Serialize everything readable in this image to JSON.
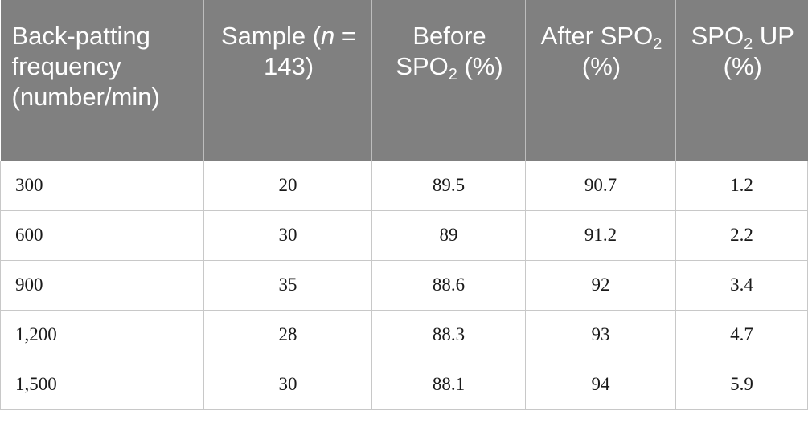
{
  "table": {
    "header": [
      [
        {
          "text": "Back-patting frequency (number/min)"
        }
      ],
      [
        {
          "text": "Sample ("
        },
        {
          "text": "n",
          "style": "italic"
        },
        {
          "text": " = 143)"
        }
      ],
      [
        {
          "text": "Before SPO"
        },
        {
          "text": "2",
          "style": "sub"
        },
        {
          "text": " (%)"
        }
      ],
      [
        {
          "text": "After SPO"
        },
        {
          "text": "2",
          "style": "sub"
        },
        {
          "text": " (%)"
        }
      ],
      [
        {
          "text": "SPO"
        },
        {
          "text": "2",
          "style": "sub"
        },
        {
          "text": " UP (%)"
        }
      ]
    ],
    "rows": [
      [
        "300",
        "20",
        "89.5",
        "90.7",
        "1.2"
      ],
      [
        "600",
        "30",
        "89",
        "91.2",
        "2.2"
      ],
      [
        "900",
        "35",
        "88.6",
        "92",
        "3.4"
      ],
      [
        "1,200",
        "28",
        "88.3",
        "93",
        "4.7"
      ],
      [
        "1,500",
        "30",
        "88.1",
        "94",
        "5.9"
      ]
    ]
  }
}
